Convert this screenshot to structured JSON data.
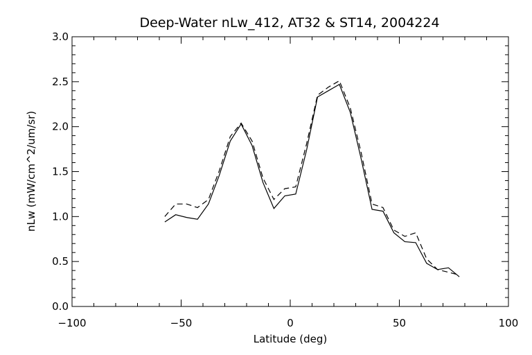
{
  "chart_data": {
    "type": "line",
    "title": "Deep-Water nLw_412, AT32 & ST14, 2004224",
    "xlabel": "Latitude (deg)",
    "ylabel": "nLw (mW/cm^2/um/sr)",
    "xlim": [
      -100,
      100
    ],
    "ylim": [
      0.0,
      3.0
    ],
    "xticks": [
      -100,
      -50,
      0,
      50,
      100
    ],
    "xtick_labels": [
      "−100",
      "−50",
      "0",
      "50",
      "100"
    ],
    "yticks": [
      0.0,
      0.5,
      1.0,
      1.5,
      2.0,
      2.5,
      3.0
    ],
    "ytick_labels": [
      "0.0",
      "0.5",
      "1.0",
      "1.5",
      "2.0",
      "2.5",
      "3.0"
    ],
    "grid": false,
    "legend": false,
    "series": [
      {
        "style": "solid",
        "color": "#000000",
        "x": [
          -57.5,
          -52.5,
          -47.5,
          -42.5,
          -37.5,
          -32.5,
          -27.5,
          -22.5,
          -17.5,
          -12.5,
          -7.5,
          -2.5,
          2.5,
          7.5,
          12.5,
          17.5,
          22.5,
          27.5,
          32.5,
          37.5,
          42.5,
          47.5,
          52.5,
          57.5,
          62.5,
          67.5,
          72.5,
          77.5
        ],
        "y": [
          0.94,
          1.02,
          0.99,
          0.97,
          1.14,
          1.46,
          1.84,
          2.03,
          1.79,
          1.38,
          1.09,
          1.23,
          1.25,
          1.74,
          2.33,
          2.4,
          2.47,
          2.16,
          1.64,
          1.08,
          1.06,
          0.82,
          0.72,
          0.71,
          0.48,
          0.41,
          0.43,
          0.33
        ]
      },
      {
        "style": "dashed",
        "color": "#000000",
        "x": [
          -57.5,
          -52.5,
          -47.5,
          -42.5,
          -37.5,
          -32.5,
          -27.5,
          -22.5,
          -17.5,
          -12.5,
          -7.5,
          -2.5,
          2.5,
          7.5,
          12.5,
          17.5,
          22.5,
          27.5,
          32.5,
          37.5,
          42.5,
          47.5,
          52.5,
          57.5,
          62.5,
          67.5,
          72.5,
          77.5
        ],
        "y": [
          1.0,
          1.14,
          1.14,
          1.1,
          1.19,
          1.51,
          1.89,
          2.04,
          1.84,
          1.43,
          1.19,
          1.31,
          1.33,
          1.81,
          2.35,
          2.44,
          2.51,
          2.21,
          1.71,
          1.14,
          1.1,
          0.85,
          0.78,
          0.82,
          0.53,
          0.41,
          0.38,
          0.35
        ]
      }
    ]
  }
}
